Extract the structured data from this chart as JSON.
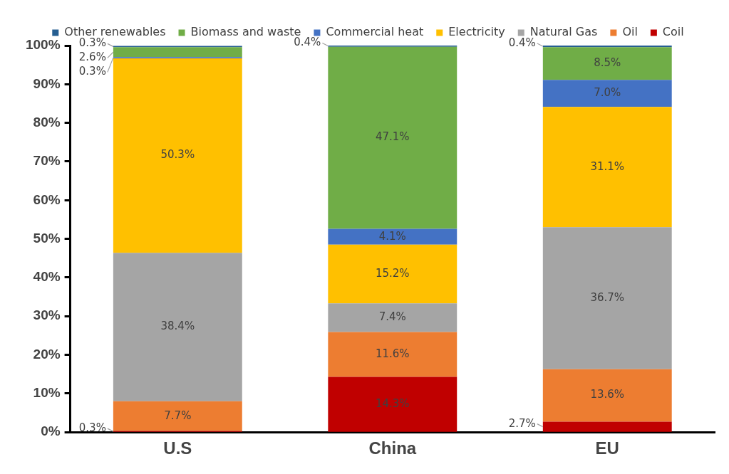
{
  "chart_data": {
    "type": "bar",
    "stacked": true,
    "legend": "top",
    "categories": [
      "U.S",
      "China",
      "EU"
    ],
    "series": [
      {
        "name": "Coil",
        "color": "#c00000",
        "values": [
          0.3,
          14.3,
          2.7
        ],
        "value_labels": [
          "0.3%",
          "14.3%",
          "2.7%"
        ]
      },
      {
        "name": "Oil",
        "color": "#ed7d31",
        "values": [
          7.7,
          11.6,
          13.6
        ],
        "value_labels": [
          "7.7%",
          "11.6%",
          "13.6%"
        ]
      },
      {
        "name": "Natural Gas",
        "color": "#a5a5a5",
        "values": [
          38.4,
          7.4,
          36.7
        ],
        "value_labels": [
          "38.4%",
          "7.4%",
          "36.7%"
        ]
      },
      {
        "name": "Electricity",
        "color": "#ffc000",
        "values": [
          50.3,
          15.2,
          31.1
        ],
        "value_labels": [
          "50.3%",
          "15.2%",
          "31.1%"
        ]
      },
      {
        "name": "Commercial heat",
        "color": "#4472c4",
        "values": [
          0.3,
          4.1,
          7.0
        ],
        "value_labels": [
          "0.3%",
          "4.1%",
          "7.0%"
        ]
      },
      {
        "name": "Biomass and waste",
        "color": "#70ad47",
        "values": [
          2.6,
          47.1,
          8.5
        ],
        "value_labels": [
          "2.6%",
          "47.1%",
          "8.5%"
        ]
      },
      {
        "name": "Other renewables",
        "color": "#255e91",
        "values": [
          0.3,
          0.4,
          0.4
        ],
        "value_labels": [
          "0.3%",
          "0.4%",
          "0.4%"
        ]
      }
    ],
    "ylim": [
      0,
      100
    ],
    "yticks": [
      {
        "value": 0,
        "label": "0%"
      },
      {
        "value": 10,
        "label": "10%"
      },
      {
        "value": 20,
        "label": "20%"
      },
      {
        "value": 30,
        "label": "30%"
      },
      {
        "value": 40,
        "label": "40%"
      },
      {
        "value": 50,
        "label": "50%"
      },
      {
        "value": 60,
        "label": "60%"
      },
      {
        "value": 70,
        "label": "70%"
      },
      {
        "value": 80,
        "label": "80%"
      },
      {
        "value": 90,
        "label": "90%"
      },
      {
        "value": 100,
        "label": "100%"
      }
    ],
    "grid": false
  }
}
